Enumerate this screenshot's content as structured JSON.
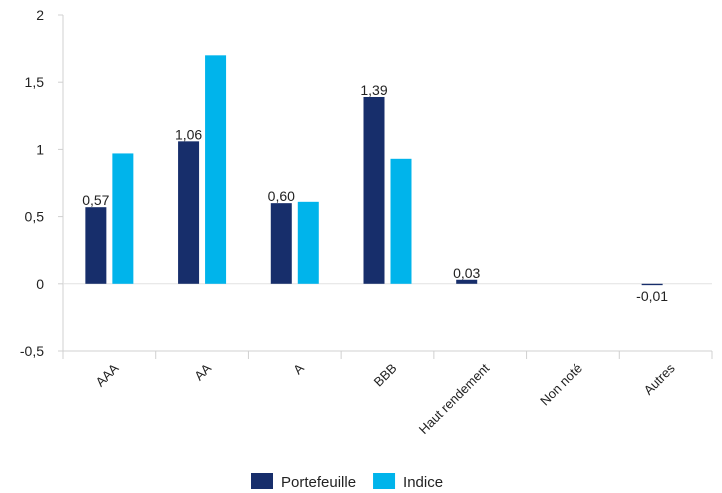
{
  "chart_data": {
    "type": "bar",
    "categories": [
      "AAA",
      "AA",
      "A",
      "BBB",
      "Haut rendement",
      "Non noté",
      "Autres"
    ],
    "series": [
      {
        "name": "Portefeuille",
        "values": [
          0.57,
          1.06,
          0.6,
          1.39,
          0.03,
          0,
          -0.01
        ],
        "color": "#172e6b"
      },
      {
        "name": "Indice",
        "values": [
          0.97,
          1.7,
          0.61,
          0.93,
          0,
          0,
          0
        ],
        "color": "#00b4eb"
      }
    ],
    "data_labels": [
      "0,57",
      "1,06",
      "0,60",
      "1,39",
      "0,03",
      "",
      "-0,01"
    ],
    "yticks": [
      {
        "value": 2,
        "label": "2"
      },
      {
        "value": 1.5,
        "label": "1,5"
      },
      {
        "value": 1,
        "label": "1"
      },
      {
        "value": 0.5,
        "label": "0,5"
      },
      {
        "value": 0,
        "label": "0"
      },
      {
        "value": -0.5,
        "label": "-0,5"
      }
    ],
    "ylim": [
      -0.5,
      2
    ],
    "grid": false,
    "legend_position": "bottom",
    "title": "",
    "xlabel": "",
    "ylabel": ""
  }
}
